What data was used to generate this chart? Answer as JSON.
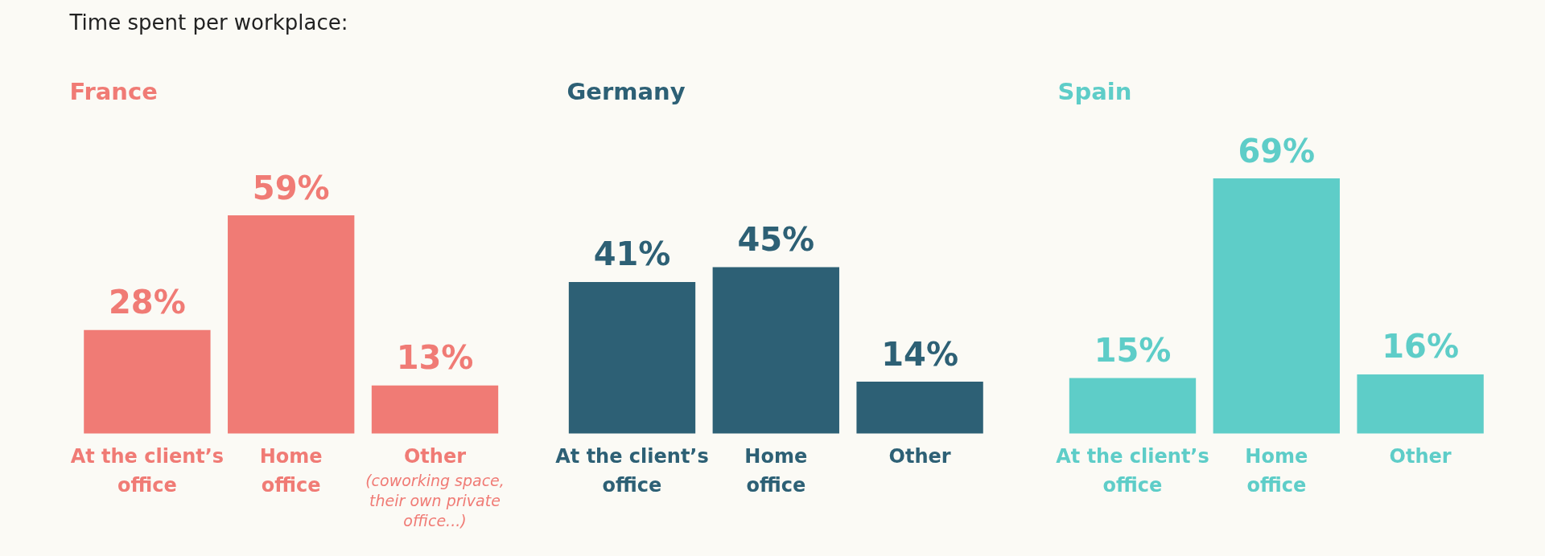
{
  "chart_data": [
    {
      "type": "bar",
      "title": "France",
      "categories": [
        "At the client’s office",
        "Home office",
        "Other"
      ],
      "values": [
        28,
        59,
        13
      ],
      "color": "#f07b75",
      "value_labels": [
        "28%",
        "59%",
        "13%"
      ],
      "annotations": [
        "Time spent per workplace:",
        "(coworking space, their own private office...)"
      ]
    },
    {
      "type": "bar",
      "title": "Germany",
      "categories": [
        "At the client’s office",
        "Home office",
        "Other"
      ],
      "values": [
        41,
        45,
        14
      ],
      "color": "#2d6075",
      "value_labels": [
        "41%",
        "45%",
        "14%"
      ]
    },
    {
      "type": "bar",
      "title": "Spain",
      "categories": [
        "At the client’s office",
        "Home office",
        "Other"
      ],
      "values": [
        15,
        69,
        16
      ],
      "color": "#5ecdc8",
      "value_labels": [
        "15%",
        "69%",
        "16%"
      ]
    }
  ]
}
